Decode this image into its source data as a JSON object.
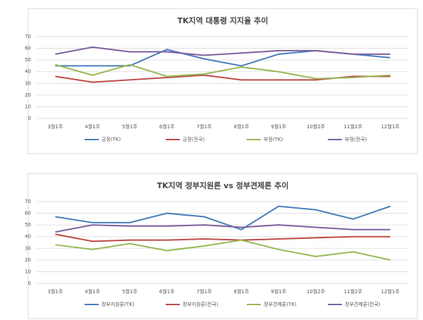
{
  "chart_data": [
    {
      "type": "line",
      "title": "TK지역 대통령 지지율 추이",
      "categories": [
        "3월1주",
        "4월1주",
        "5월1주",
        "6월1주",
        "7월1주",
        "8월1주",
        "9월1주",
        "10월2주",
        "11월2주",
        "12월1주"
      ],
      "ylim": [
        0,
        70
      ],
      "yticks": [
        0,
        10,
        20,
        30,
        40,
        50,
        60,
        70
      ],
      "grid": true,
      "legend": "bottom",
      "series": [
        {
          "name": "긍정(TK)",
          "color": "#4a7ebb",
          "values": [
            45,
            45,
            45,
            59,
            51,
            45,
            55,
            58,
            55,
            52
          ]
        },
        {
          "name": "긍정(전국)",
          "color": "#be4b48",
          "values": [
            36,
            31,
            33,
            35,
            37,
            33,
            33,
            33,
            36,
            36
          ]
        },
        {
          "name": "부정(TK)",
          "color": "#98b954",
          "values": [
            46,
            37,
            46,
            36,
            38,
            44,
            40,
            34,
            35,
            37
          ]
        },
        {
          "name": "부정(전국)",
          "color": "#7d60a0",
          "values": [
            55,
            61,
            57,
            57,
            54,
            56,
            58,
            58,
            55,
            55
          ]
        }
      ]
    },
    {
      "type": "line",
      "title": "TK지역 정부지원론 vs 정부견제론 추이",
      "categories": [
        "3월1주",
        "4월1주",
        "5월1주",
        "6월1주",
        "7월1주",
        "8월1주",
        "9월1주",
        "10월2주",
        "11월2주",
        "12월1주"
      ],
      "ylim": [
        0,
        70
      ],
      "yticks": [
        0,
        10,
        20,
        30,
        40,
        50,
        60,
        70
      ],
      "grid": true,
      "legend": "bottom",
      "series": [
        {
          "name": "정부지원론(TK)",
          "color": "#4a7ebb",
          "values": [
            57,
            52,
            52,
            60,
            57,
            46,
            66,
            63,
            55,
            66
          ]
        },
        {
          "name": "정부지원론(전국)",
          "color": "#be4b48",
          "values": [
            42,
            36,
            37,
            37,
            38,
            37,
            38,
            39,
            40,
            40
          ]
        },
        {
          "name": "정부견제론(TK)",
          "color": "#98b954",
          "values": [
            33,
            29,
            34,
            28,
            32,
            37,
            29,
            23,
            27,
            20
          ]
        },
        {
          "name": "정부견제론(전국)",
          "color": "#7d60a0",
          "values": [
            44,
            50,
            49,
            49,
            50,
            48,
            50,
            48,
            46,
            46
          ]
        }
      ]
    }
  ]
}
